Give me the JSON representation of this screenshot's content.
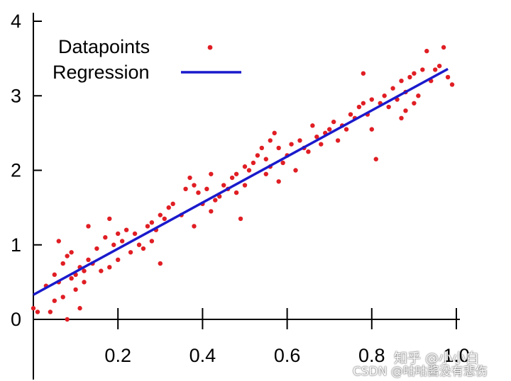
{
  "chart_data": {
    "type": "scatter",
    "title": "",
    "xlabel": "",
    "ylabel": "",
    "xlim": [
      0,
      1.0
    ],
    "ylim": [
      0,
      4
    ],
    "x_ticks": [
      0.2,
      0.4,
      0.6,
      0.8,
      1.0
    ],
    "x_tick_labels": [
      "0.2",
      "0.4",
      "0.6",
      "0.8",
      "1.0"
    ],
    "y_ticks": [
      0,
      1,
      2,
      3,
      4
    ],
    "y_tick_labels": [
      "0",
      "1",
      "2",
      "3",
      "4"
    ],
    "grid": false,
    "legend_position": "top-left",
    "series": [
      {
        "name": "Datapoints",
        "kind": "scatter",
        "color": "#e01e24",
        "x": [
          0.0,
          0.01,
          0.03,
          0.04,
          0.05,
          0.05,
          0.06,
          0.06,
          0.07,
          0.07,
          0.08,
          0.08,
          0.09,
          0.09,
          0.1,
          0.1,
          0.11,
          0.11,
          0.12,
          0.12,
          0.13,
          0.13,
          0.14,
          0.15,
          0.16,
          0.17,
          0.18,
          0.18,
          0.19,
          0.2,
          0.2,
          0.21,
          0.22,
          0.23,
          0.24,
          0.25,
          0.26,
          0.27,
          0.28,
          0.28,
          0.29,
          0.3,
          0.3,
          0.31,
          0.32,
          0.33,
          0.35,
          0.36,
          0.37,
          0.38,
          0.38,
          0.39,
          0.4,
          0.41,
          0.42,
          0.42,
          0.43,
          0.44,
          0.45,
          0.46,
          0.47,
          0.48,
          0.48,
          0.49,
          0.5,
          0.5,
          0.51,
          0.52,
          0.53,
          0.54,
          0.55,
          0.55,
          0.56,
          0.56,
          0.57,
          0.58,
          0.58,
          0.59,
          0.6,
          0.61,
          0.62,
          0.63,
          0.64,
          0.65,
          0.66,
          0.67,
          0.68,
          0.69,
          0.7,
          0.71,
          0.72,
          0.73,
          0.74,
          0.75,
          0.76,
          0.77,
          0.78,
          0.78,
          0.79,
          0.8,
          0.8,
          0.81,
          0.82,
          0.83,
          0.84,
          0.85,
          0.86,
          0.87,
          0.87,
          0.88,
          0.88,
          0.89,
          0.9,
          0.9,
          0.91,
          0.92,
          0.93,
          0.94,
          0.95,
          0.96,
          0.97,
          0.98,
          0.99
        ],
        "values": [
          0.15,
          0.1,
          0.45,
          0.1,
          0.25,
          0.6,
          0.5,
          1.05,
          0.3,
          0.75,
          0.0,
          0.85,
          0.55,
          0.9,
          0.6,
          0.4,
          0.15,
          0.7,
          0.65,
          0.5,
          1.25,
          0.8,
          0.75,
          0.95,
          0.65,
          1.1,
          0.7,
          1.35,
          1.0,
          1.15,
          0.8,
          1.05,
          1.2,
          0.9,
          1.15,
          1.0,
          0.95,
          1.25,
          1.3,
          1.05,
          1.2,
          1.4,
          0.75,
          1.35,
          1.5,
          1.55,
          1.4,
          1.75,
          1.9,
          1.25,
          1.8,
          1.7,
          1.55,
          1.75,
          1.95,
          1.45,
          1.6,
          1.65,
          1.8,
          1.75,
          1.9,
          1.95,
          1.7,
          1.35,
          1.8,
          2.05,
          2.0,
          2.1,
          2.2,
          2.3,
          2.15,
          1.95,
          2.4,
          2.05,
          2.5,
          2.3,
          1.85,
          2.1,
          2.2,
          2.35,
          2.0,
          2.4,
          2.3,
          2.25,
          2.6,
          2.45,
          2.35,
          2.5,
          2.55,
          2.65,
          2.4,
          2.6,
          2.55,
          2.75,
          2.7,
          2.85,
          2.9,
          3.3,
          2.75,
          2.95,
          2.55,
          2.15,
          2.9,
          3.0,
          2.85,
          3.1,
          2.95,
          3.2,
          2.7,
          3.05,
          2.8,
          3.25,
          3.3,
          2.9,
          3.0,
          3.35,
          3.6,
          3.2,
          3.35,
          3.4,
          3.65,
          3.25,
          3.15
        ]
      },
      {
        "name": "Regression",
        "kind": "line",
        "color": "#1a1acc",
        "x": [
          0.0,
          0.98
        ],
        "values": [
          0.33,
          3.36
        ]
      }
    ]
  },
  "watermark": {
    "line1": "知乎 @小小白",
    "line2": "CSDN @咕咕酱没有悲伤"
  }
}
